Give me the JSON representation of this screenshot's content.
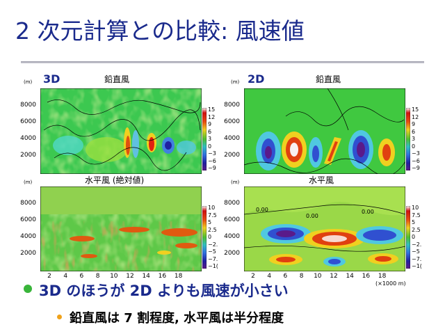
{
  "slide": {
    "title": "2 次元計算との比較: 風速値",
    "bullet_main": "3D のほうが 2D よりも風速が小さい",
    "bullet_sub": "鉛直風は 7 割程度, 水平風は半分程度"
  },
  "panels": {
    "tl": {
      "tag": "3D",
      "caption": "鉛直風",
      "unit": "(m)"
    },
    "tr": {
      "tag": "2D",
      "caption": "鉛直風",
      "unit": "(m)"
    },
    "bl": {
      "caption": "水平風 (絶対値)",
      "unit": "(m)"
    },
    "br": {
      "caption": "水平風",
      "unit": "(m)"
    }
  },
  "axes": {
    "y_ticks": [
      "8000",
      "6000",
      "4000",
      "2000"
    ],
    "x_ticks": [
      "2",
      "4",
      "6",
      "8",
      "10",
      "12",
      "14",
      "16",
      "18"
    ],
    "x_unit": "(×1000 m)"
  },
  "colorbars": {
    "vertical": [
      "15",
      "12",
      "9",
      "6",
      "3",
      "0",
      "−3",
      "−6",
      "−9"
    ],
    "horizontal": [
      "10",
      "7.5",
      "5",
      "2.5",
      "0",
      "−2.",
      "−5",
      "−7.",
      "−1("
    ]
  },
  "contour_labels": [
    "0.00",
    "0.00",
    "0.00"
  ],
  "colors": {
    "title": "#1a2a8c",
    "bullet_main": "#1a2a8c",
    "bullet_dot": "#39b53a",
    "sub_dot": "#f0a21a"
  }
}
